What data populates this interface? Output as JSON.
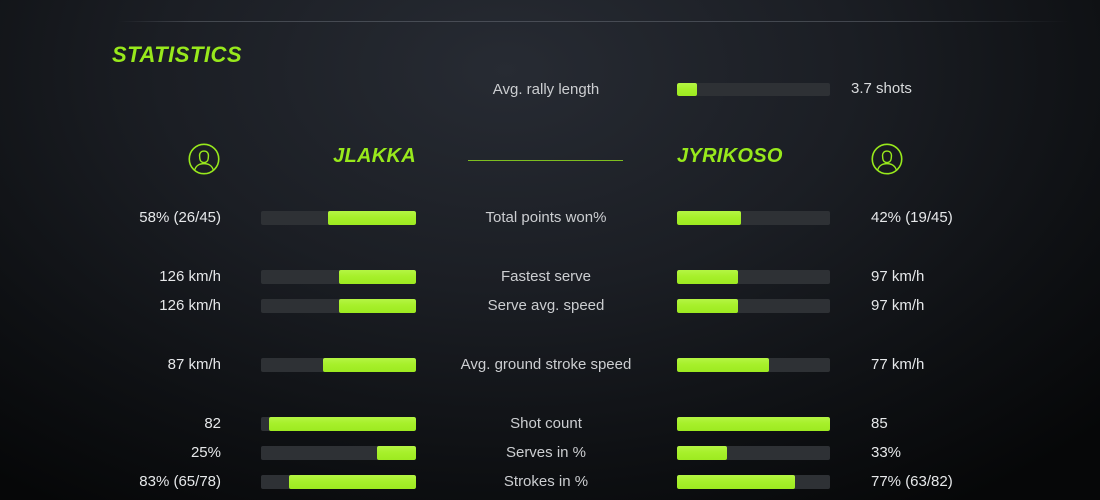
{
  "colors": {
    "accent": "#98e91c",
    "bar_green": "#a7f02b",
    "bar_track": "#2e3135"
  },
  "title": "STATISTICS",
  "avg_rally": {
    "label": "Avg. rally length",
    "value": "3.7 shots",
    "fill_pct": 13
  },
  "players": {
    "left": {
      "name": "JLAKKA"
    },
    "right": {
      "name": "JYRIKOSO"
    }
  },
  "rows": [
    {
      "id": "total-points-won",
      "label": "Total points won%",
      "left_value": "58% (26/45)",
      "right_value": "42% (19/45)",
      "left_fill_pct": 57,
      "right_fill_pct": 42
    },
    {
      "id": "fastest-serve",
      "label": "Fastest serve",
      "left_value": "126 km/h",
      "right_value": "97 km/h",
      "left_fill_pct": 50,
      "right_fill_pct": 40
    },
    {
      "id": "serve-avg-speed",
      "label": "Serve avg. speed",
      "left_value": "126 km/h",
      "right_value": "97 km/h",
      "left_fill_pct": 50,
      "right_fill_pct": 40
    },
    {
      "id": "ground-stroke-speed",
      "label": "Avg. ground stroke speed",
      "left_value": "87 km/h",
      "right_value": "77 km/h",
      "left_fill_pct": 60,
      "right_fill_pct": 60
    },
    {
      "id": "shot-count",
      "label": "Shot count",
      "left_value": "82",
      "right_value": "85",
      "left_fill_pct": 95,
      "right_fill_pct": 100
    },
    {
      "id": "serves-in-pct",
      "label": "Serves in %",
      "left_value": "25%",
      "right_value": "33%",
      "left_fill_pct": 25,
      "right_fill_pct": 33
    },
    {
      "id": "strokes-in-pct",
      "label": "Strokes in %",
      "left_value": "83% (65/78)",
      "right_value": "77% (63/82)",
      "left_fill_pct": 82,
      "right_fill_pct": 77
    }
  ],
  "chart_data": {
    "type": "bar",
    "title": "STATISTICS",
    "categories": [
      "Avg. rally length",
      "Total points won%",
      "Fastest serve",
      "Serve avg. speed",
      "Avg. ground stroke speed",
      "Shot count",
      "Serves in %",
      "Strokes in %"
    ],
    "series": [
      {
        "name": "JLAKKA",
        "values": [
          null,
          "58% (26/45)",
          "126 km/h",
          "126 km/h",
          "87 km/h",
          "82",
          "25%",
          "83% (65/78)"
        ]
      },
      {
        "name": "JYRIKOSO",
        "values": [
          "3.7 shots",
          "42% (19/45)",
          "97 km/h",
          "97 km/h",
          "77 km/h",
          "85",
          "33%",
          "77% (63/82)"
        ]
      }
    ],
    "legend_position": "header-row",
    "grid": false
  }
}
